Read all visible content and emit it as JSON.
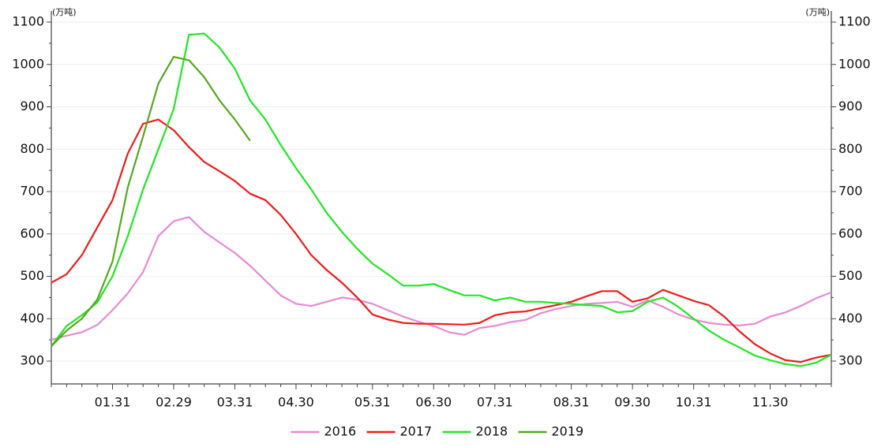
{
  "chart_data": {
    "type": "line",
    "y_unit_left": "(万吨)",
    "y_unit_right": "(万吨)",
    "categories": [
      null,
      null,
      null,
      null,
      "01.31",
      null,
      null,
      null,
      "02.29",
      null,
      null,
      null,
      "03.31",
      null,
      null,
      null,
      "04.30",
      null,
      null,
      null,
      null,
      "05.31",
      null,
      null,
      null,
      "06.30",
      null,
      null,
      null,
      "07.31",
      null,
      null,
      null,
      null,
      "08.31",
      null,
      null,
      null,
      "09.30",
      null,
      null,
      null,
      "10.31",
      null,
      null,
      null,
      null,
      "11.30",
      null,
      null,
      null,
      null
    ],
    "series": [
      {
        "name": "2016",
        "color": "#e58ad6",
        "values": [
          350,
          360,
          368,
          385,
          420,
          460,
          510,
          595,
          630,
          640,
          605,
          580,
          555,
          525,
          490,
          455,
          435,
          430,
          440,
          450,
          445,
          435,
          420,
          405,
          393,
          383,
          368,
          362,
          378,
          383,
          392,
          397,
          413,
          423,
          430,
          435,
          437,
          440,
          428,
          443,
          428,
          410,
          398,
          390,
          386,
          384,
          388,
          405,
          415,
          430,
          448,
          462
        ]
      },
      {
        "name": "2017",
        "color": "#ee1c1c",
        "values": [
          485,
          505,
          550,
          615,
          680,
          790,
          860,
          870,
          845,
          805,
          770,
          748,
          725,
          695,
          680,
          645,
          600,
          550,
          515,
          485,
          450,
          410,
          398,
          390,
          388,
          388,
          387,
          386,
          390,
          408,
          415,
          417,
          425,
          432,
          440,
          453,
          465,
          465,
          440,
          448,
          468,
          455,
          442,
          432,
          405,
          370,
          340,
          318,
          302,
          298,
          308,
          315
        ]
      },
      {
        "name": "2018",
        "color": "#22e622",
        "values": [
          335,
          383,
          408,
          438,
          500,
          595,
          705,
          800,
          895,
          1070,
          1073,
          1040,
          990,
          915,
          870,
          810,
          755,
          705,
          650,
          605,
          565,
          530,
          505,
          478,
          478,
          482,
          468,
          455,
          455,
          443,
          450,
          440,
          440,
          437,
          435,
          432,
          430,
          415,
          418,
          440,
          450,
          428,
          400,
          372,
          350,
          332,
          313,
          302,
          293,
          288,
          296,
          315
        ]
      },
      {
        "name": "2019",
        "color": "#55a81e",
        "values": [
          335,
          372,
          400,
          445,
          535,
          710,
          830,
          955,
          1018,
          1010,
          970,
          915,
          870,
          820,
          null,
          null,
          null,
          null,
          null,
          null,
          null,
          null,
          null,
          null,
          null,
          null,
          null,
          null,
          null,
          null,
          null,
          null,
          null,
          null,
          null,
          null,
          null,
          null,
          null,
          null,
          null,
          null,
          null,
          null,
          null,
          null,
          null,
          null,
          null,
          null,
          null,
          null
        ]
      }
    ],
    "ylim": [
      300,
      1100
    ],
    "yticks": [
      300,
      400,
      500,
      600,
      700,
      800,
      900,
      1000,
      1100
    ],
    "grid": true,
    "legend": "bottom"
  }
}
